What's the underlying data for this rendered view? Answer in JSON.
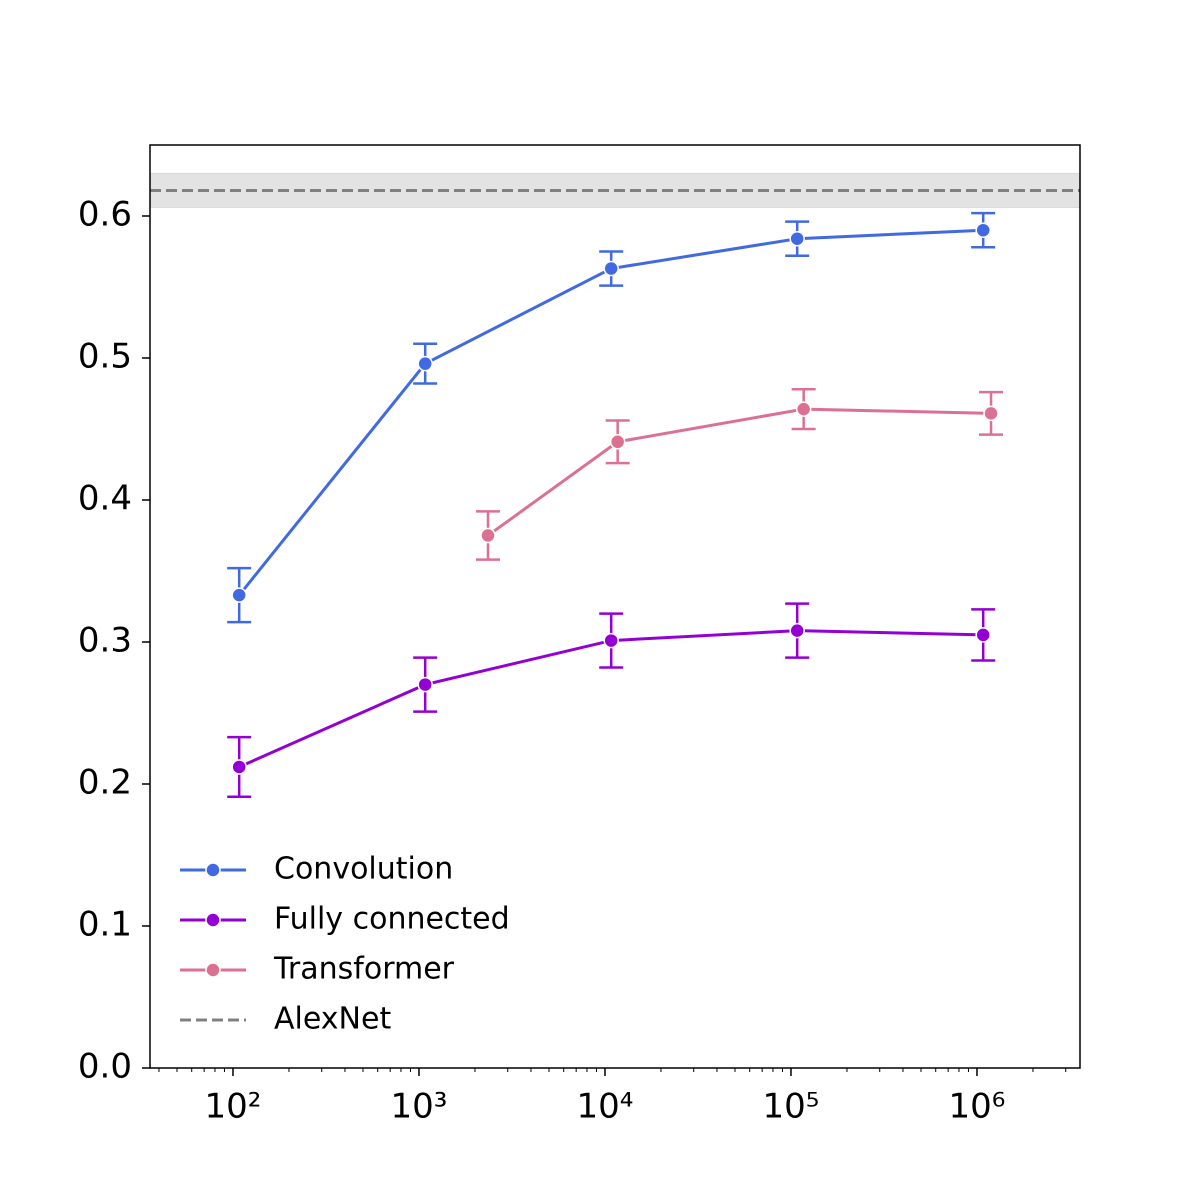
{
  "chart_data": {
    "type": "line",
    "xscale": "log",
    "xlim": [
      35.8,
      3580000
    ],
    "ylim": [
      0,
      0.65
    ],
    "xticks": [
      {
        "value": 100,
        "label": "10²"
      },
      {
        "value": 1000,
        "label": "10³"
      },
      {
        "value": 10000,
        "label": "10⁴"
      },
      {
        "value": 100000,
        "label": "10⁵"
      },
      {
        "value": 1000000,
        "label": "10⁶"
      }
    ],
    "yticks": [
      {
        "value": 0,
        "label": "0.0"
      },
      0.1,
      0.2,
      0.3,
      0.4,
      0.5,
      0.6
    ],
    "grid": false,
    "legend": "lower left",
    "series": [
      {
        "name": "Convolution",
        "color": "#4169e1",
        "x": [
          108,
          1080,
          10800,
          108000,
          1080000
        ],
        "values": [
          0.333,
          0.496,
          0.563,
          0.584,
          0.59
        ],
        "errors": [
          0.019,
          0.014,
          0.012,
          0.012,
          0.012
        ]
      },
      {
        "name": "Fully connected",
        "color": "#9400d3",
        "x": [
          108,
          1080,
          10800,
          108000,
          1080000
        ],
        "values": [
          0.212,
          0.27,
          0.301,
          0.308,
          0.305
        ],
        "errors": [
          0.021,
          0.019,
          0.019,
          0.019,
          0.018
        ]
      },
      {
        "name": "Transformer",
        "color": "#db7093",
        "x": [
          2350,
          11700,
          117000,
          1190000
        ],
        "values": [
          0.375,
          0.441,
          0.464,
          0.461
        ],
        "errors": [
          0.017,
          0.015,
          0.014,
          0.015
        ]
      }
    ],
    "reference": {
      "name": "AlexNet",
      "color": "#808080",
      "value": 0.618,
      "error": 0.012
    }
  }
}
